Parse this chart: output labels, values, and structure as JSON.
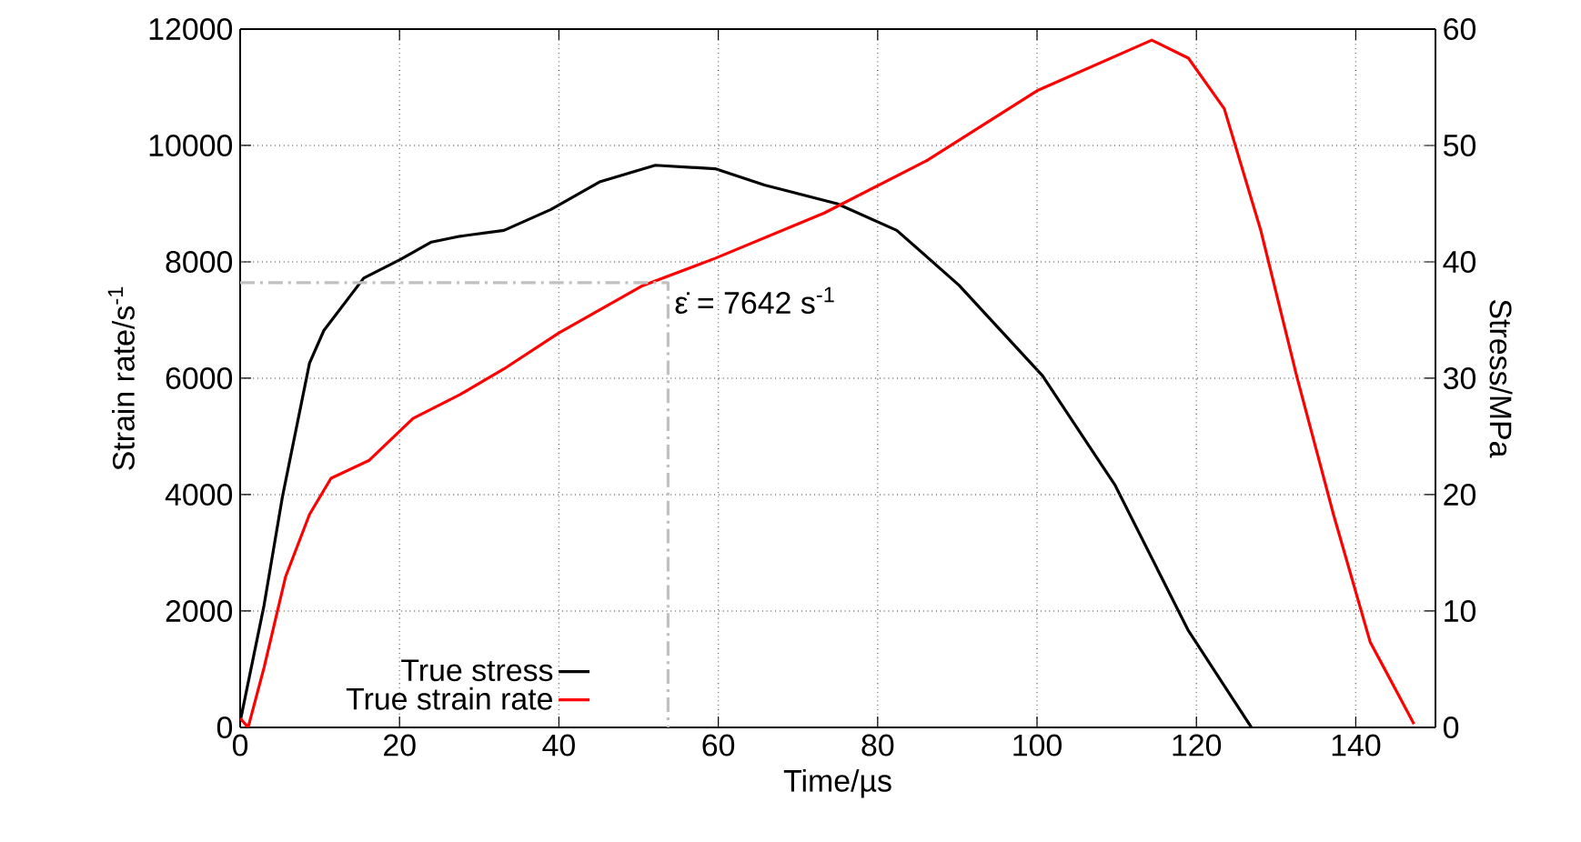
{
  "chart_data": {
    "type": "line",
    "xlabel": "Time/µs",
    "ylabel": "Strain rate/s$^{-1}$",
    "y2label": "Stress/MPa",
    "xlim": [
      0,
      150
    ],
    "xticks": [
      0,
      20,
      40,
      60,
      80,
      100,
      120,
      140
    ],
    "ylim": [
      0,
      12000
    ],
    "yticks": [
      0,
      2000,
      4000,
      6000,
      8000,
      10000,
      12000
    ],
    "y2lim": [
      0,
      60
    ],
    "y2ticks": [
      0,
      10,
      20,
      30,
      40,
      50,
      60
    ],
    "grid": true,
    "legend": "bottom left",
    "marker": "none",
    "series": [
      {
        "name": "True stress",
        "color": "#000000",
        "axis": "y2",
        "x": [
          0,
          3.0,
          5.3,
          8.7,
          10.5,
          15.5,
          20.1,
          24.0,
          27.6,
          33.1,
          39.0,
          45.2,
          52.1,
          59.6,
          65.8,
          74.9,
          82.4,
          90.2,
          100.7,
          109.8,
          119.0,
          126.9
        ],
        "values": [
          0.5,
          10.5,
          19.8,
          31.3,
          34.1,
          38.6,
          40.2,
          41.7,
          42.2,
          42.7,
          44.5,
          46.9,
          48.3,
          48.0,
          46.6,
          45.0,
          42.7,
          38.0,
          30.2,
          20.8,
          8.3,
          0
        ]
      },
      {
        "name": "True strain rate",
        "color": "#ff0000",
        "x": [
          0,
          1,
          3.0,
          5.7,
          8.7,
          11.4,
          16.2,
          21.7,
          27.6,
          33.1,
          40.0,
          50.5,
          59.6,
          73.3,
          86.3,
          100.0,
          114.4,
          119.0,
          123.5,
          128.1,
          132.6,
          137.2,
          141.8,
          147.3
        ],
        "values": [
          160,
          0,
          1030,
          2590,
          3660,
          4280,
          4590,
          5310,
          5720,
          6160,
          6780,
          7590,
          8060,
          8840,
          9750,
          10940,
          11810,
          11500,
          10630,
          8530,
          6030,
          3660,
          1470,
          60
        ]
      },
      {
        "color": "#c0c0c0",
        "line_style": "dashed",
        "x": [
          0,
          53.7,
          53.7
        ],
        "values": [
          7642,
          7642,
          0
        ]
      }
    ],
    "annotations": [
      {
        "text": "ε̇ = 7642 s$^{-1}$",
        "x": 53.7,
        "y": 7642
      }
    ]
  }
}
